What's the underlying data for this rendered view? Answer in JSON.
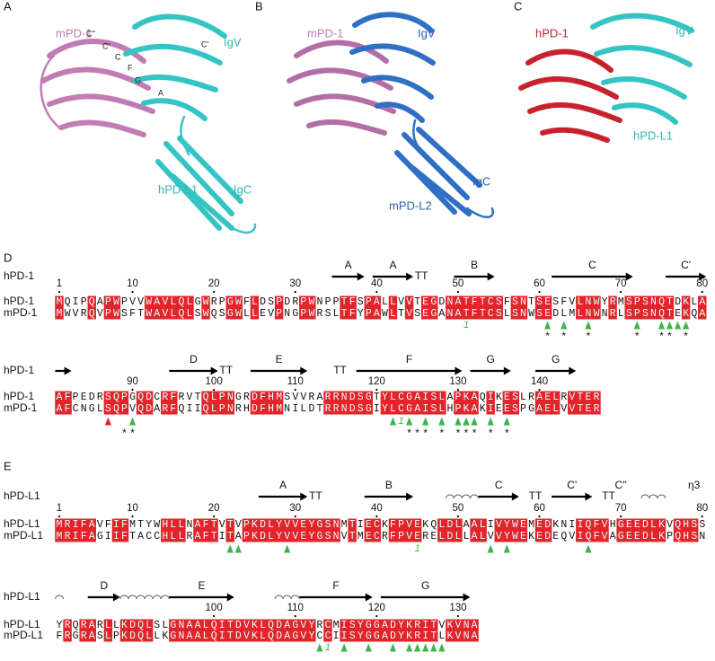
{
  "structures": [
    {
      "letter": "A",
      "labels": [
        "mPD-1",
        "IgV",
        "hPD-L1",
        "IgC"
      ],
      "strands": [
        "C''",
        "C'",
        "C",
        "F",
        "G",
        "C'",
        "A"
      ]
    },
    {
      "letter": "B",
      "labels": [
        "mPD-1",
        "IgV",
        "IgC",
        "mPD-L2"
      ]
    },
    {
      "letter": "C",
      "labels": [
        "hPD-1",
        "IgV",
        "hPD-L1"
      ]
    }
  ],
  "symbols": {
    "star": "*",
    "ss_bond": "1"
  },
  "alignments": [
    {
      "letter": "D",
      "ref": "hPD-1",
      "seq_names": [
        "hPD-1",
        "mPD-1"
      ],
      "blocks": [
        {
          "start": 1,
          "numbers": [
            1,
            10,
            20,
            30,
            40,
            50,
            60,
            70,
            80
          ],
          "ss": [
            {
              "kind": "arrow",
              "label": "A",
              "start": 35,
              "end": 38
            },
            {
              "kind": "arrow",
              "label": "A",
              "start": 40,
              "end": 44
            },
            {
              "kind": "tt",
              "label": "TT",
              "start": 45,
              "end": 46
            },
            {
              "kind": "arrow",
              "label": "B",
              "start": 50,
              "end": 54
            },
            {
              "kind": "arrow",
              "label": "C",
              "start": 62,
              "end": 71
            },
            {
              "kind": "arrow",
              "label": "C'",
              "start": 76,
              "end": 80
            }
          ],
          "seqs": [
            "MQIPQAPWPVVWAVLQLGWRPGWFLDSPDRPWNPPTFSPALLVVTEGDNATFTCSFSNTSESFVLNWYRMSPSNQTDKLA",
            "MWVRQVPWSFTWAVLQLSWQSGWLLEVPNGPWRSLTFYPAWLTVSEGANATFTCSLSNWSEDLMLNWNRLSPSNQTEKQA"
          ],
          "triangles": [
            61,
            63,
            66,
            72,
            75,
            76,
            77,
            78
          ],
          "red_triangles": [],
          "stars": [
            61,
            63,
            66,
            72,
            75,
            76,
            78
          ],
          "ss_bond": [
            51
          ]
        },
        {
          "start": 81,
          "numbers": [
            90,
            100,
            110,
            120,
            130,
            140
          ],
          "ss": [
            {
              "kind": "arrow",
              "start": 81,
              "end": 82
            },
            {
              "kind": "arrow",
              "label": "D",
              "start": 95,
              "end": 100
            },
            {
              "kind": "tt",
              "label": "TT",
              "start": 101,
              "end": 102
            },
            {
              "kind": "arrow",
              "label": "E",
              "start": 105,
              "end": 111
            },
            {
              "kind": "tt",
              "label": "TT",
              "start": 115,
              "end": 116
            },
            {
              "kind": "arrow",
              "label": "F",
              "start": 118,
              "end": 130
            },
            {
              "kind": "arrow",
              "label": "G",
              "start": 132,
              "end": 136
            },
            {
              "kind": "arrow",
              "label": "G",
              "start": 140,
              "end": 144
            }
          ],
          "seqs": [
            "AFPEDRSQPGQDCRFRVTQLPNGRDFHMSVVRARRNDSGTYLCGAISLAPKAQIKESLRAELRVTER",
            "AFCNGLSQPVQDARFQIIQLPNRHDFHMNILDTRRNDSGIYLCGAISLHPKAKIEESPGAELVVTER"
          ],
          "triangles": [
            90,
            122,
            124,
            126,
            128,
            130,
            131,
            132,
            134,
            136
          ],
          "red_triangles": [
            87
          ],
          "stars": [
            89,
            90,
            124,
            125,
            126,
            128,
            130,
            131,
            132,
            134,
            136
          ],
          "ss_bond": [
            123
          ]
        }
      ]
    },
    {
      "letter": "E",
      "ref": "hPD-L1",
      "seq_names": [
        "hPD-L1",
        "mPD-L1"
      ],
      "blocks": [
        {
          "start": 1,
          "numbers": [
            1,
            10,
            20,
            30,
            40,
            50,
            60,
            70,
            80
          ],
          "ss": [
            {
              "kind": "arrow",
              "label": "A",
              "start": 26,
              "end": 31
            },
            {
              "kind": "tt",
              "label": "TT",
              "start": 32,
              "end": 33
            },
            {
              "kind": "arrow",
              "label": "B",
              "start": 39,
              "end": 44
            },
            {
              "kind": "helix",
              "start": 49,
              "end": 52
            },
            {
              "kind": "arrow",
              "label": "C",
              "start": 53,
              "end": 57
            },
            {
              "kind": "tt",
              "label": "TT",
              "start": 59,
              "end": 60
            },
            {
              "kind": "arrow",
              "label": "C'",
              "start": 62,
              "end": 66
            },
            {
              "kind": "tt",
              "label": "TT",
              "start": 68,
              "end": 69
            },
            {
              "kind": "label",
              "label": "C''",
              "start": 70,
              "end": 70
            },
            {
              "kind": "helix",
              "start": 73,
              "end": 75
            },
            {
              "kind": "label",
              "label": "η3",
              "start": 79,
              "end": 79
            }
          ],
          "seqs": [
            "MRIFAVFIFMTYWHLLNAFTVTVPKDLYVVEYGSNMTIECKFPVEKQLDLAALIVYWEMEDKNIIQFVHGEEDLKVQHSS",
            "MRIFAGIIFTACCHLLRAFTITAPKDLYVVEYGSNVTMECRFPVERELDLLALVVYWEKEDEQVIQFVAGEEDLKPQHSN"
          ],
          "triangles": [
            22,
            23,
            29,
            54,
            56,
            66
          ],
          "red_triangles": [],
          "stars": [],
          "ss_bond": [
            45
          ]
        },
        {
          "start": 81,
          "numbers": [
            100,
            110,
            120,
            130
          ],
          "ss": [
            {
              "kind": "helix",
              "start": 81,
              "end": 81
            },
            {
              "kind": "arrow",
              "label": "D",
              "start": 85,
              "end": 88
            },
            {
              "kind": "helix",
              "start": 89,
              "end": 94
            },
            {
              "kind": "arrow",
              "label": "E",
              "start": 95,
              "end": 102
            },
            {
              "kind": "helix",
              "start": 108,
              "end": 110
            },
            {
              "kind": "arrow",
              "label": "F",
              "start": 111,
              "end": 119
            },
            {
              "kind": "arrow",
              "label": "G",
              "start": 121,
              "end": 131
            }
          ],
          "seqs": [
            "YRQRARLLKDQLSLGNAALQITDVKLQDAGVYRCMISYGGADYKRITVKVNA",
            "FRGRASLPKDQLLKGNAALQITDVKLQDAGVYCCIISYGGADYKRITLKVNA"
          ],
          "triangles": [
            113,
            116,
            119,
            122,
            124,
            125,
            126,
            127,
            128
          ],
          "red_triangles": [],
          "stars": [],
          "ss_bond": [
            114
          ]
        }
      ]
    }
  ]
}
